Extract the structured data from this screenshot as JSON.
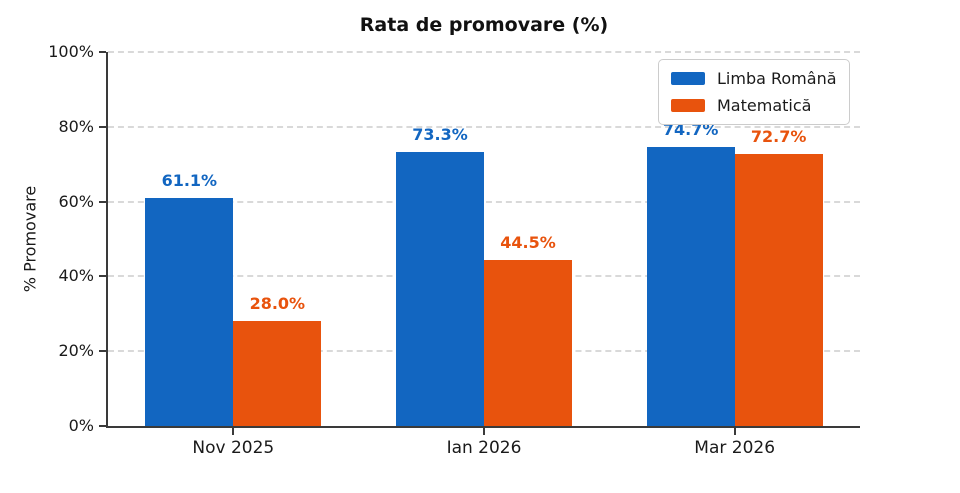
{
  "title": "Rata de promovare (%)",
  "chart_data": {
    "type": "bar",
    "title": "Rata de promovare (%)",
    "categories": [
      "Nov 2025",
      "Ian 2026",
      "Mar 2026"
    ],
    "series": [
      {
        "name": "Limba Română",
        "color": "#1266c1",
        "values": [
          61.1,
          73.3,
          74.7
        ],
        "value_labels": [
          "61.1%",
          "73.3%",
          "74.7%"
        ]
      },
      {
        "name": "Matematică",
        "color": "#e8530d",
        "values": [
          28.0,
          44.5,
          72.7
        ],
        "value_labels": [
          "28.0%",
          "44.5%",
          "72.7%"
        ]
      }
    ],
    "xlabel": "",
    "ylabel": "% Promovare",
    "ylim": [
      0,
      100
    ],
    "ytick_labels": [
      "0%",
      "20%",
      "40%",
      "60%",
      "80%",
      "100%"
    ],
    "ytick_values": [
      0,
      20,
      40,
      60,
      80,
      100
    ],
    "grid": "horizontal-dashed",
    "grid_color": "#d9d9d9",
    "axis_color": "#3a3a3a",
    "text_color": "#1a1a1a",
    "legend_position": "top-right",
    "background_color": "#ffffff"
  }
}
